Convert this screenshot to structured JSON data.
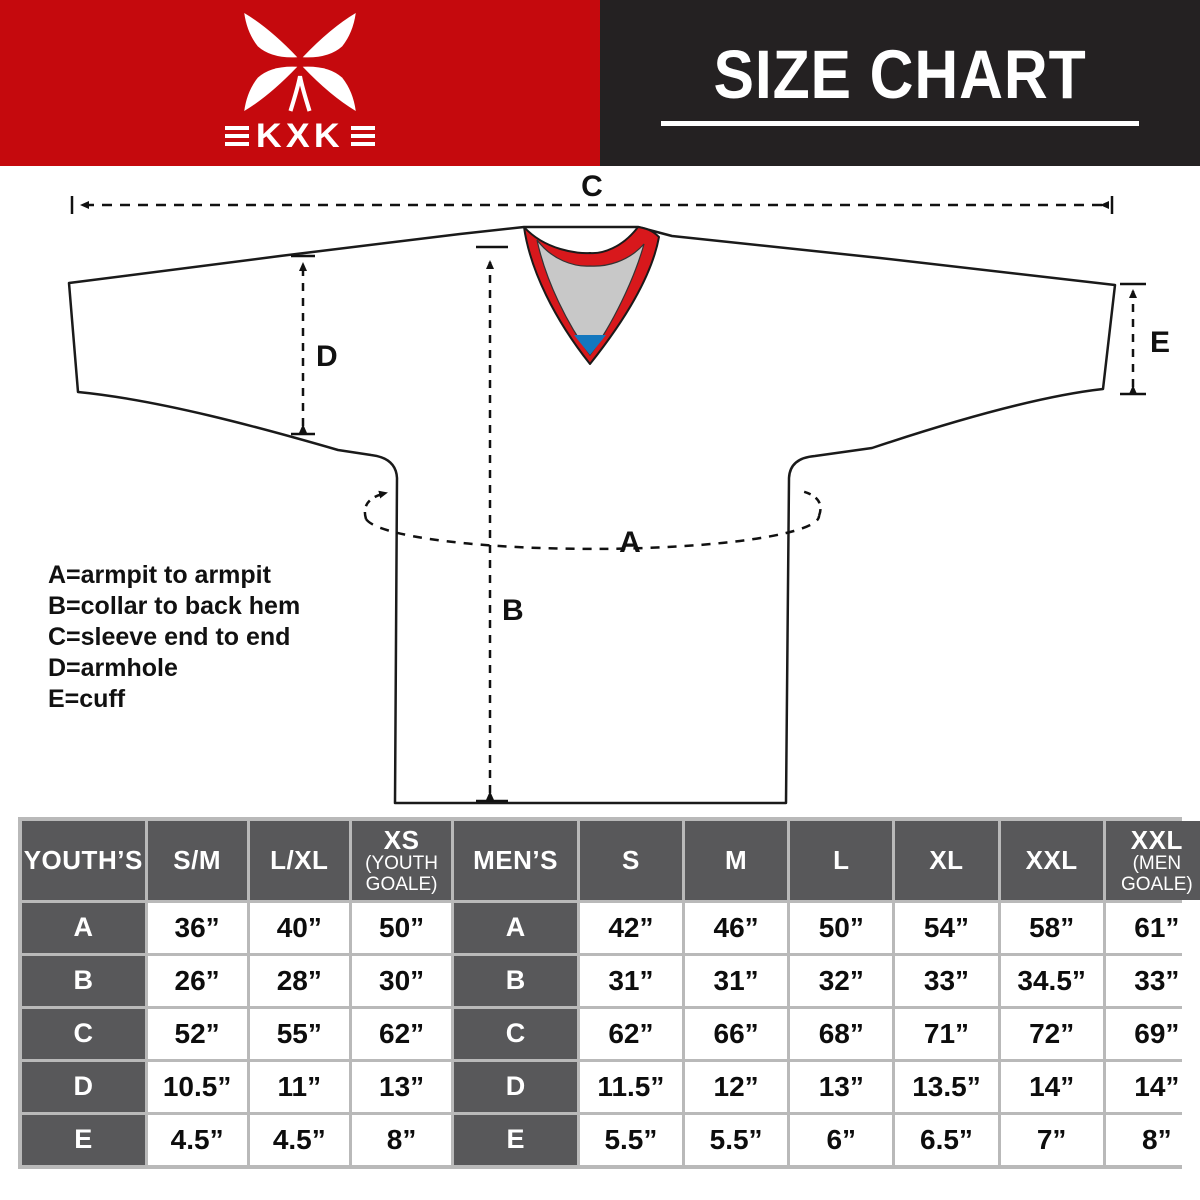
{
  "header": {
    "logo_text": "KXK",
    "title": "SIZE CHART"
  },
  "diagram": {
    "labels": {
      "a": "A",
      "b": "B",
      "c": "C",
      "d": "D",
      "e": "E"
    }
  },
  "legend": {
    "lines": [
      "A=armpit to armpit",
      "B=collar to back hem",
      "C=sleeve end to end",
      "D=armhole",
      "E=cuff"
    ]
  },
  "table": {
    "columns": [
      {
        "label": "YOUTH’S",
        "sub": "",
        "type": "label"
      },
      {
        "label": "S/M",
        "sub": ""
      },
      {
        "label": "L/XL",
        "sub": ""
      },
      {
        "label": "XS",
        "sub": "(YOUTH GOALE)"
      },
      {
        "label": "MEN’S",
        "sub": "",
        "type": "label"
      },
      {
        "label": "S",
        "sub": ""
      },
      {
        "label": "M",
        "sub": ""
      },
      {
        "label": "L",
        "sub": ""
      },
      {
        "label": "XL",
        "sub": ""
      },
      {
        "label": "XXL",
        "sub": ""
      },
      {
        "label": "XXL",
        "sub": "(MEN GOALE)"
      }
    ],
    "rows": [
      {
        "key": "A",
        "youth": [
          "36”",
          "40”",
          "50”"
        ],
        "men": [
          "42”",
          "46”",
          "50”",
          "54”",
          "58”",
          "61”"
        ]
      },
      {
        "key": "B",
        "youth": [
          "26”",
          "28”",
          "30”"
        ],
        "men": [
          "31”",
          "31”",
          "32”",
          "33”",
          "34.5”",
          "33”"
        ]
      },
      {
        "key": "C",
        "youth": [
          "52”",
          "55”",
          "62”"
        ],
        "men": [
          "62”",
          "66”",
          "68”",
          "71”",
          "72”",
          "69”"
        ]
      },
      {
        "key": "D",
        "youth": [
          "10.5”",
          "11”",
          "13”"
        ],
        "men": [
          "11.5”",
          "12”",
          "13”",
          "13.5”",
          "14”",
          "14”"
        ]
      },
      {
        "key": "E",
        "youth": [
          "4.5”",
          "4.5”",
          "8”"
        ],
        "men": [
          "5.5”",
          "5.5”",
          "6”",
          "6.5”",
          "7”",
          "8”"
        ]
      }
    ]
  },
  "colors": {
    "brand_red": "#c5090d",
    "header_black": "#242122",
    "collar_red": "#d8181c",
    "collar_gray": "#c8c8c8",
    "collar_blue": "#1377be",
    "cell_gray": "#58585a",
    "table_border_gray": "#b9b9b9"
  }
}
